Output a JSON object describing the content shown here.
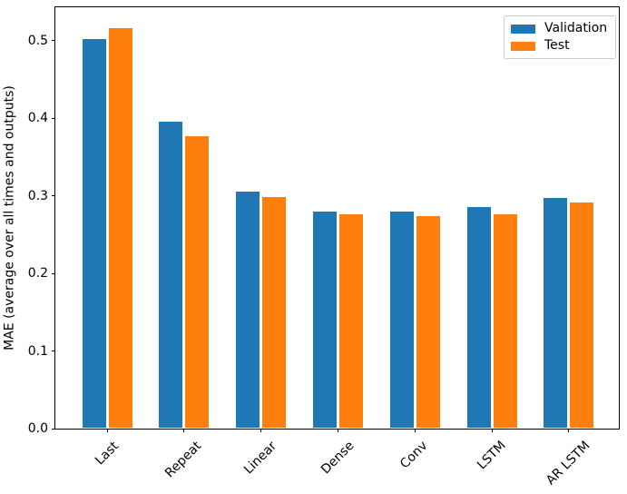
{
  "chart_data": {
    "type": "bar",
    "title": "",
    "xlabel": "",
    "ylabel": "MAE (average over all times and outputs)",
    "categories": [
      "Last",
      "Repeat",
      "Linear",
      "Dense",
      "Conv",
      "LSTM",
      "AR LSTM"
    ],
    "series": [
      {
        "name": "Validation",
        "color": "#1f77b4",
        "values": [
          0.502,
          0.396,
          0.306,
          0.28,
          0.28,
          0.286,
          0.297
        ]
      },
      {
        "name": "Test",
        "color": "#ff7f0e",
        "values": [
          0.516,
          0.377,
          0.299,
          0.276,
          0.274,
          0.276,
          0.291
        ]
      }
    ],
    "ylim": [
      0,
      0.5433
    ],
    "yticks": [
      0.0,
      0.1,
      0.2,
      0.3,
      0.4,
      0.5
    ],
    "ytick_labels": [
      "0.0",
      "0.1",
      "0.2",
      "0.3",
      "0.4",
      "0.5"
    ],
    "xtick_rotation": 45,
    "grid": false,
    "legend": {
      "position": "upper right",
      "entries": [
        "Validation",
        "Test"
      ]
    },
    "colors": {
      "axis_spine": "#000000",
      "background": "#ffffff",
      "legend_border": "#cccccc"
    }
  }
}
